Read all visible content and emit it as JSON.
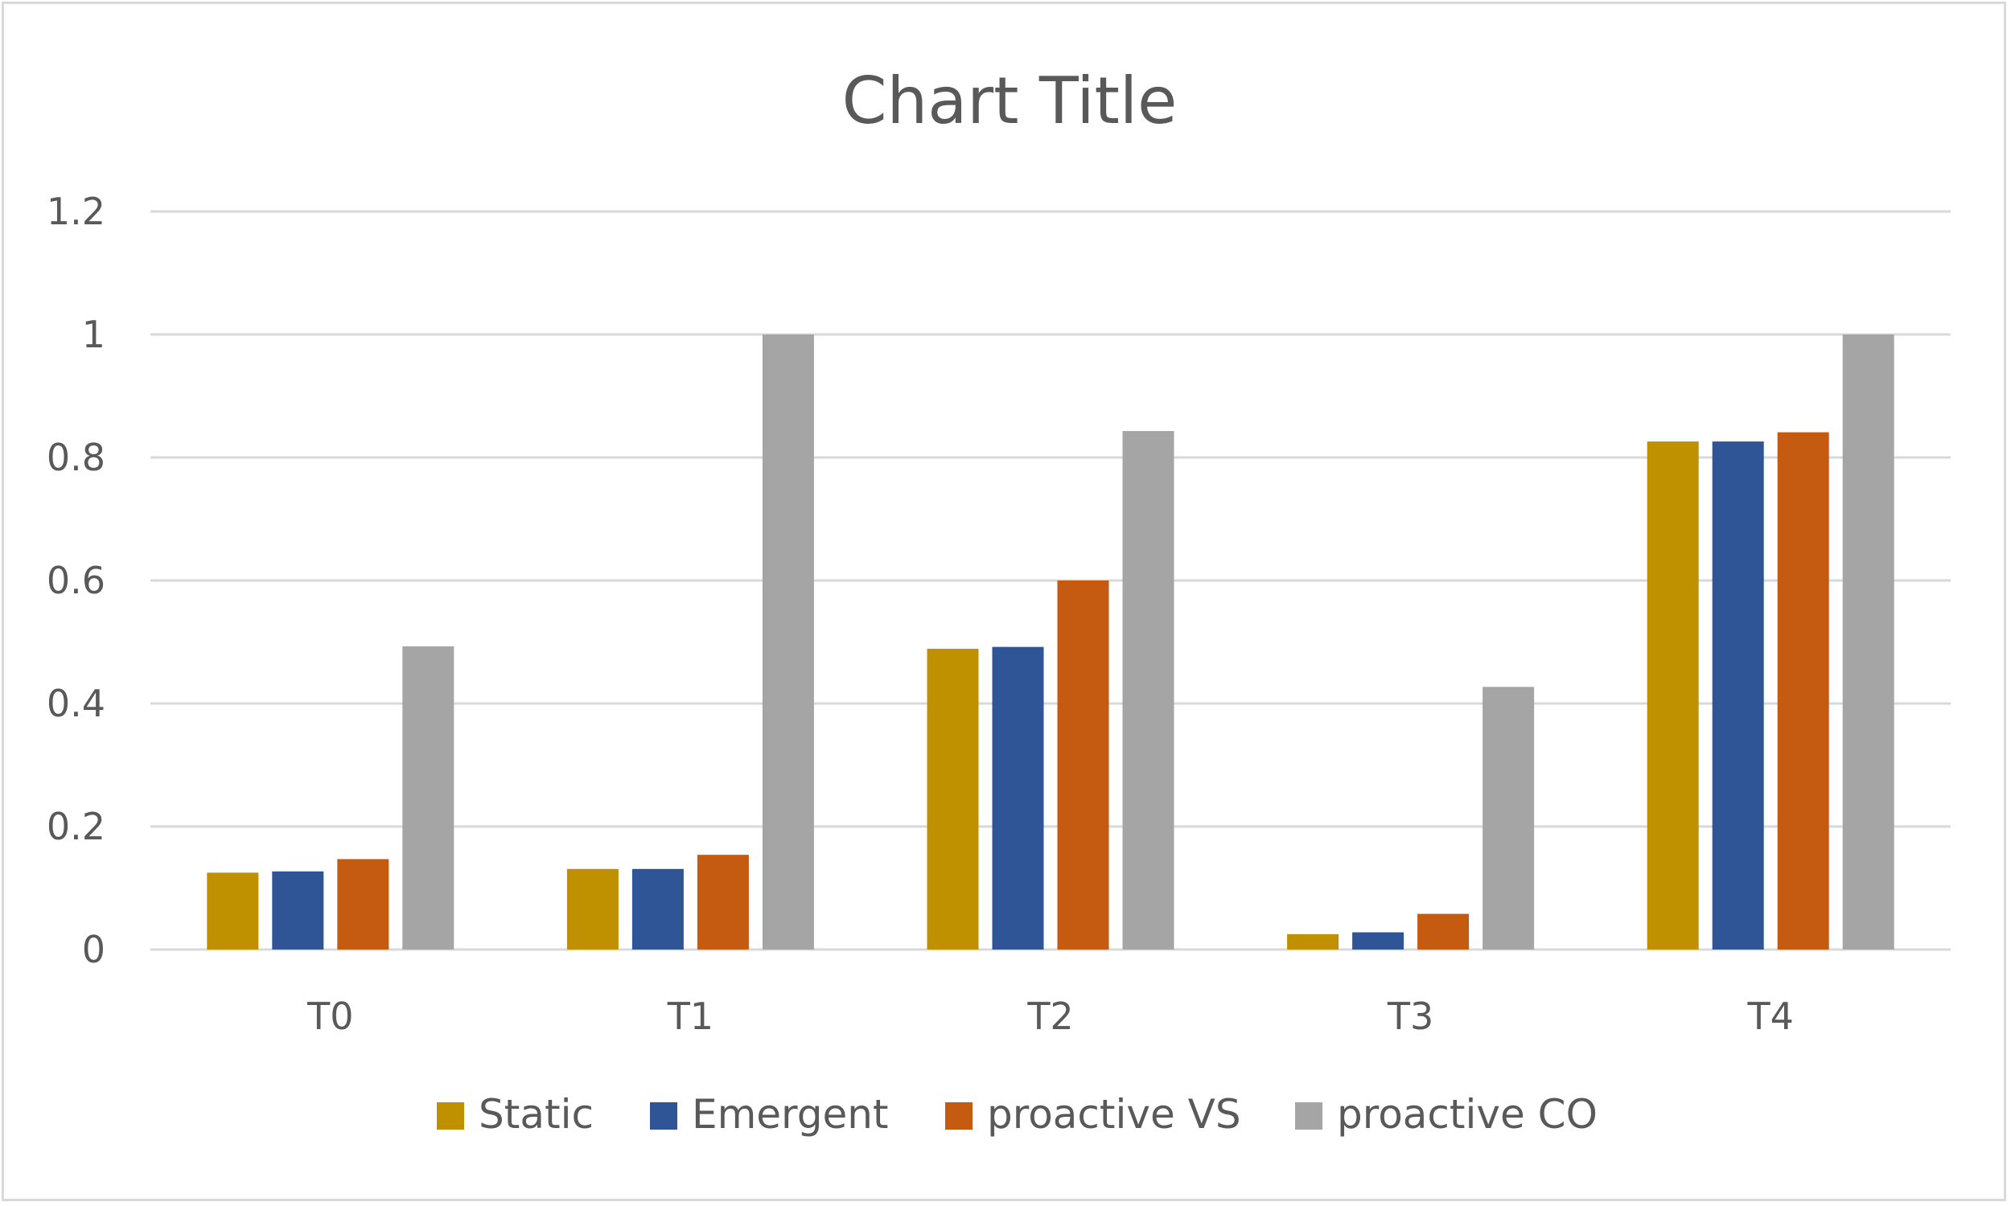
{
  "chart_data": {
    "type": "bar",
    "title": "Chart Title",
    "xlabel": "",
    "ylabel": "",
    "ylim": [
      0,
      1.2
    ],
    "yticks": [
      0,
      0.2,
      0.4,
      0.6,
      0.8,
      1,
      1.2
    ],
    "ytick_labels": [
      "0",
      "0.2",
      "0.4",
      "0.6",
      "0.8",
      "1",
      "1.2"
    ],
    "grid": true,
    "legend_position": "bottom",
    "categories": [
      "T0",
      "T1",
      "T2",
      "T3",
      "T4"
    ],
    "series": [
      {
        "name": "Static",
        "color": "#bf9000",
        "values": [
          0.125,
          0.131,
          0.489,
          0.025,
          0.826
        ]
      },
      {
        "name": "Emergent",
        "color": "#2f5597",
        "values": [
          0.127,
          0.131,
          0.492,
          0.028,
          0.826
        ]
      },
      {
        "name": "proactive VS",
        "color": "#c55a11",
        "values": [
          0.147,
          0.154,
          0.6,
          0.058,
          0.841
        ]
      },
      {
        "name": "proactive CO",
        "color": "#a5a5a5",
        "values": [
          0.493,
          1.0,
          0.843,
          0.427,
          1.0
        ]
      }
    ]
  }
}
